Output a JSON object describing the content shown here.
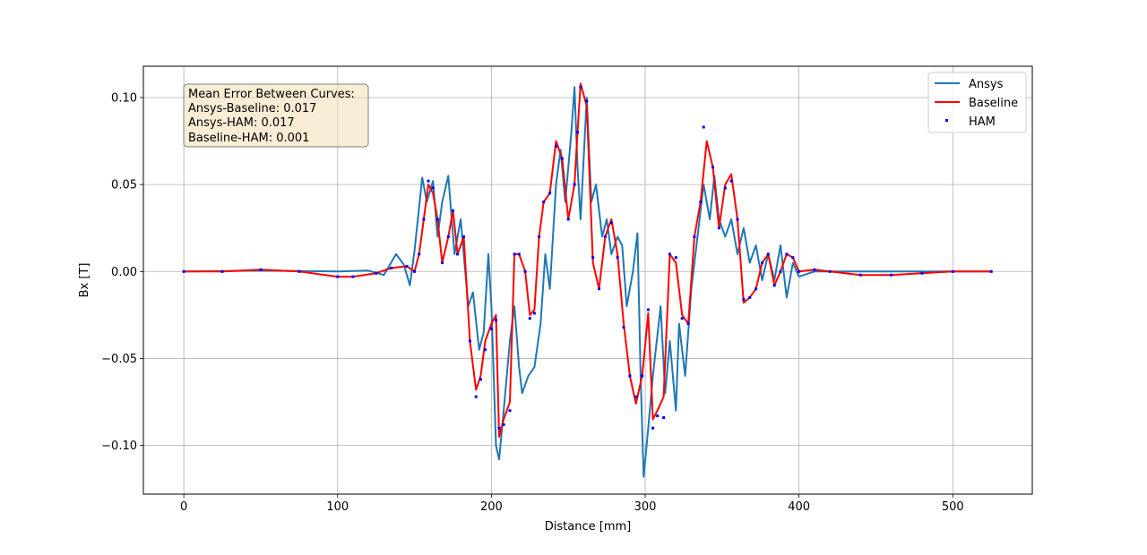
{
  "chart_data": {
    "type": "line",
    "title": "",
    "xlabel": "Distance [mm]",
    "ylabel": "Bx [T]",
    "xlim": [
      -26.3,
      551.7
    ],
    "ylim": [
      -0.128,
      0.118
    ],
    "xticks": [
      0,
      100,
      200,
      300,
      400,
      500
    ],
    "xtick_labels": [
      "0",
      "100",
      "200",
      "300",
      "400",
      "500"
    ],
    "yticks": [
      -0.1,
      -0.05,
      0.0,
      0.05,
      0.1
    ],
    "ytick_labels": [
      "−0.10",
      "−0.05",
      "0.00",
      "0.05",
      "0.10"
    ],
    "grid": true,
    "legend_position": "top-right",
    "annotation": {
      "lines": [
        "Mean Error Between Curves:",
        "Ansys-Baseline: 0.017",
        "Ansys-HAM: 0.017",
        "Baseline-HAM: 0.001"
      ],
      "position": "top-left",
      "background": "#f5deb3"
    },
    "series": [
      {
        "name": "Ansys",
        "style": "line",
        "color": "#1f77b4",
        "points": [
          [
            0,
            0.0
          ],
          [
            50,
            0.0005
          ],
          [
            100,
            0.0
          ],
          [
            120,
            0.0005
          ],
          [
            130,
            -0.002
          ],
          [
            138,
            0.01
          ],
          [
            143,
            0.004
          ],
          [
            147,
            -0.008
          ],
          [
            150,
            0.012
          ],
          [
            155,
            0.054
          ],
          [
            158,
            0.04
          ],
          [
            162,
            0.052
          ],
          [
            165,
            0.02
          ],
          [
            168,
            0.04
          ],
          [
            172,
            0.055
          ],
          [
            176,
            0.01
          ],
          [
            180,
            0.03
          ],
          [
            185,
            -0.02
          ],
          [
            188,
            -0.012
          ],
          [
            192,
            -0.045
          ],
          [
            195,
            -0.035
          ],
          [
            198,
            0.01
          ],
          [
            200,
            -0.02
          ],
          [
            203,
            -0.1
          ],
          [
            205,
            -0.108
          ],
          [
            208,
            -0.08
          ],
          [
            212,
            -0.04
          ],
          [
            215,
            -0.02
          ],
          [
            218,
            -0.055
          ],
          [
            220,
            -0.07
          ],
          [
            224,
            -0.06
          ],
          [
            228,
            -0.055
          ],
          [
            232,
            -0.03
          ],
          [
            235,
            0.01
          ],
          [
            238,
            -0.01
          ],
          [
            242,
            0.05
          ],
          [
            245,
            0.07
          ],
          [
            248,
            0.04
          ],
          [
            252,
            0.08
          ],
          [
            254,
            0.106
          ],
          [
            256,
            0.06
          ],
          [
            258,
            0.03
          ],
          [
            262,
            0.1
          ],
          [
            265,
            0.04
          ],
          [
            268,
            0.05
          ],
          [
            272,
            0.02
          ],
          [
            275,
            0.03
          ],
          [
            278,
            0.01
          ],
          [
            282,
            0.02
          ],
          [
            285,
            0.015
          ],
          [
            288,
            -0.02
          ],
          [
            292,
            0.0
          ],
          [
            295,
            0.022
          ],
          [
            297,
            -0.06
          ],
          [
            299,
            -0.118
          ],
          [
            302,
            -0.09
          ],
          [
            305,
            -0.06
          ],
          [
            310,
            -0.02
          ],
          [
            313,
            -0.07
          ],
          [
            316,
            -0.04
          ],
          [
            320,
            -0.08
          ],
          [
            322,
            -0.03
          ],
          [
            326,
            -0.06
          ],
          [
            330,
            -0.01
          ],
          [
            334,
            0.02
          ],
          [
            338,
            0.05
          ],
          [
            342,
            0.03
          ],
          [
            345,
            0.055
          ],
          [
            348,
            0.03
          ],
          [
            352,
            0.02
          ],
          [
            356,
            0.03
          ],
          [
            360,
            0.01
          ],
          [
            364,
            0.025
          ],
          [
            368,
            0.005
          ],
          [
            372,
            0.015
          ],
          [
            376,
            -0.005
          ],
          [
            380,
            0.01
          ],
          [
            384,
            -0.005
          ],
          [
            388,
            0.015
          ],
          [
            392,
            -0.015
          ],
          [
            396,
            0.005
          ],
          [
            400,
            -0.003
          ],
          [
            410,
            0.0
          ],
          [
            420,
            0.0
          ],
          [
            450,
            0.0
          ],
          [
            500,
            0.0
          ],
          [
            525,
            0.0
          ]
        ]
      },
      {
        "name": "Baseline",
        "style": "line",
        "color": "#ff0000",
        "points": [
          [
            0,
            0.0
          ],
          [
            25,
            0.0
          ],
          [
            50,
            0.001
          ],
          [
            75,
            0.0
          ],
          [
            100,
            -0.003
          ],
          [
            110,
            -0.003
          ],
          [
            125,
            -0.001
          ],
          [
            135,
            0.002
          ],
          [
            145,
            0.003
          ],
          [
            150,
            0.0
          ],
          [
            153,
            0.01
          ],
          [
            156,
            0.03
          ],
          [
            159,
            0.05
          ],
          [
            162,
            0.045
          ],
          [
            165,
            0.03
          ],
          [
            168,
            0.005
          ],
          [
            172,
            0.02
          ],
          [
            175,
            0.035
          ],
          [
            178,
            0.01
          ],
          [
            182,
            0.02
          ],
          [
            186,
            -0.04
          ],
          [
            190,
            -0.068
          ],
          [
            193,
            -0.06
          ],
          [
            196,
            -0.04
          ],
          [
            200,
            -0.03
          ],
          [
            203,
            -0.025
          ],
          [
            205,
            -0.095
          ],
          [
            208,
            -0.085
          ],
          [
            212,
            -0.075
          ],
          [
            215,
            0.01
          ],
          [
            218,
            0.01
          ],
          [
            222,
            0.0
          ],
          [
            225,
            -0.025
          ],
          [
            228,
            -0.022
          ],
          [
            231,
            0.02
          ],
          [
            234,
            0.04
          ],
          [
            238,
            0.045
          ],
          [
            242,
            0.075
          ],
          [
            246,
            0.065
          ],
          [
            250,
            0.03
          ],
          [
            254,
            0.05
          ],
          [
            256,
            0.08
          ],
          [
            258,
            0.108
          ],
          [
            262,
            0.095
          ],
          [
            266,
            0.005
          ],
          [
            270,
            -0.01
          ],
          [
            274,
            0.02
          ],
          [
            278,
            0.03
          ],
          [
            282,
            0.01
          ],
          [
            286,
            -0.03
          ],
          [
            290,
            -0.06
          ],
          [
            294,
            -0.076
          ],
          [
            298,
            -0.06
          ],
          [
            302,
            -0.024
          ],
          [
            305,
            -0.085
          ],
          [
            308,
            -0.08
          ],
          [
            312,
            -0.072
          ],
          [
            316,
            0.01
          ],
          [
            320,
            0.005
          ],
          [
            324,
            -0.025
          ],
          [
            328,
            -0.03
          ],
          [
            332,
            0.02
          ],
          [
            336,
            0.04
          ],
          [
            340,
            0.075
          ],
          [
            344,
            0.06
          ],
          [
            348,
            0.025
          ],
          [
            352,
            0.05
          ],
          [
            356,
            0.056
          ],
          [
            360,
            0.03
          ],
          [
            364,
            -0.018
          ],
          [
            368,
            -0.015
          ],
          [
            372,
            -0.01
          ],
          [
            376,
            0.005
          ],
          [
            380,
            0.01
          ],
          [
            384,
            -0.008
          ],
          [
            388,
            0.0
          ],
          [
            392,
            0.01
          ],
          [
            396,
            0.008
          ],
          [
            400,
            0.0
          ],
          [
            410,
            0.001
          ],
          [
            420,
            0.0
          ],
          [
            440,
            -0.002
          ],
          [
            460,
            -0.002
          ],
          [
            480,
            -0.001
          ],
          [
            500,
            0.0
          ],
          [
            525,
            0.0
          ]
        ]
      },
      {
        "name": "HAM",
        "style": "markers",
        "color": "#0000ff",
        "points": [
          [
            0,
            0.0
          ],
          [
            25,
            0.0
          ],
          [
            50,
            0.001
          ],
          [
            75,
            0.0
          ],
          [
            100,
            -0.003
          ],
          [
            110,
            -0.003
          ],
          [
            125,
            -0.001
          ],
          [
            135,
            0.002
          ],
          [
            145,
            0.003
          ],
          [
            150,
            0.0
          ],
          [
            153,
            0.01
          ],
          [
            156,
            0.03
          ],
          [
            159,
            0.052
          ],
          [
            162,
            0.048
          ],
          [
            165,
            0.03
          ],
          [
            168,
            0.005
          ],
          [
            172,
            0.02
          ],
          [
            175,
            0.035
          ],
          [
            178,
            0.01
          ],
          [
            182,
            0.02
          ],
          [
            186,
            -0.04
          ],
          [
            190,
            -0.072
          ],
          [
            193,
            -0.062
          ],
          [
            196,
            -0.045
          ],
          [
            200,
            -0.033
          ],
          [
            203,
            -0.028
          ],
          [
            205,
            -0.09
          ],
          [
            208,
            -0.088
          ],
          [
            212,
            -0.08
          ],
          [
            215,
            0.01
          ],
          [
            218,
            0.01
          ],
          [
            222,
            0.0
          ],
          [
            225,
            -0.027
          ],
          [
            228,
            -0.024
          ],
          [
            231,
            0.02
          ],
          [
            234,
            0.04
          ],
          [
            238,
            0.045
          ],
          [
            242,
            0.072
          ],
          [
            246,
            0.065
          ],
          [
            250,
            0.03
          ],
          [
            254,
            0.05
          ],
          [
            256,
            0.08
          ],
          [
            258,
            0.106
          ],
          [
            262,
            0.098
          ],
          [
            266,
            0.008
          ],
          [
            270,
            -0.01
          ],
          [
            274,
            0.02
          ],
          [
            278,
            0.028
          ],
          [
            282,
            0.008
          ],
          [
            286,
            -0.032
          ],
          [
            290,
            -0.06
          ],
          [
            294,
            -0.072
          ],
          [
            298,
            -0.06
          ],
          [
            302,
            -0.022
          ],
          [
            305,
            -0.09
          ],
          [
            308,
            -0.083
          ],
          [
            312,
            -0.084
          ],
          [
            316,
            0.01
          ],
          [
            320,
            0.008
          ],
          [
            324,
            -0.027
          ],
          [
            328,
            -0.03
          ],
          [
            332,
            0.02
          ],
          [
            336,
            0.04
          ],
          [
            338,
            0.083
          ],
          [
            344,
            0.06
          ],
          [
            348,
            0.025
          ],
          [
            352,
            0.048
          ],
          [
            356,
            0.052
          ],
          [
            360,
            0.03
          ],
          [
            364,
            -0.016
          ],
          [
            368,
            -0.015
          ],
          [
            372,
            -0.01
          ],
          [
            376,
            0.005
          ],
          [
            380,
            0.01
          ],
          [
            384,
            -0.008
          ],
          [
            388,
            0.0
          ],
          [
            392,
            0.01
          ],
          [
            396,
            0.008
          ],
          [
            400,
            0.0
          ],
          [
            410,
            0.001
          ],
          [
            420,
            0.0
          ],
          [
            440,
            -0.002
          ],
          [
            460,
            -0.002
          ],
          [
            480,
            -0.001
          ],
          [
            500,
            0.0
          ],
          [
            525,
            0.0
          ]
        ]
      }
    ]
  }
}
